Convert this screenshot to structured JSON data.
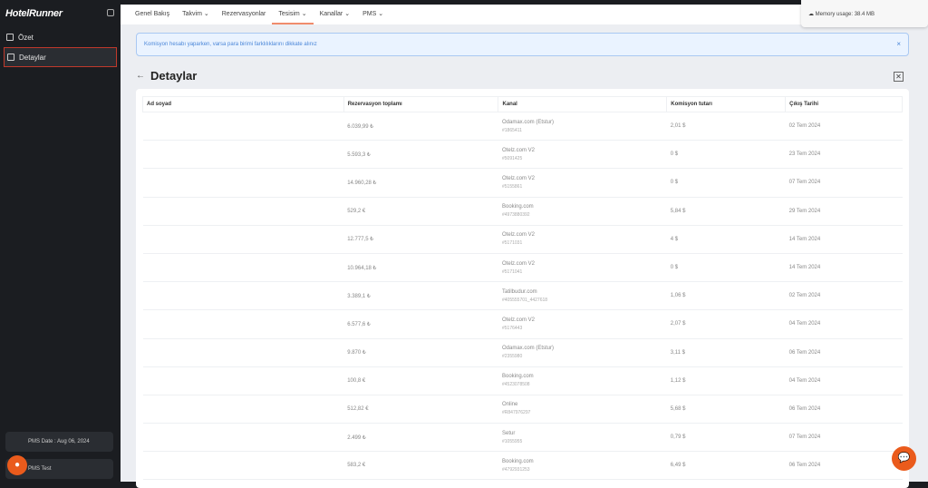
{
  "sidebar": {
    "logo": "HotelRunner",
    "items": [
      {
        "label": "Özet"
      },
      {
        "label": "Detaylar"
      }
    ],
    "pms_date": "PMS Date : Aug 06, 2024",
    "pms_name": "PMS Test"
  },
  "nav": {
    "items": [
      "Genel Bakış",
      "Takvim",
      "Rezervasyonlar",
      "Tesisim",
      "Kanallar",
      "PMS"
    ],
    "active": "Tesisim"
  },
  "alert": {
    "text": "Komisyon hesabı yaparken, varsa para birimi farklılıklarını dikkate alınız",
    "close": "×"
  },
  "page": {
    "title": "Detaylar"
  },
  "popup": {
    "memory": "Memory usage: 38.4 MB"
  },
  "table": {
    "headers": [
      "Ad soyad",
      "Rezervasyon toplamı",
      "Kanal",
      "Komisyon tutarı",
      "Çıkış Tarihi"
    ],
    "rows": [
      [
        "",
        "6.039,99 ₺",
        "Odamax.com (Etstur)",
        "#1865411",
        "2,01 $",
        "02 Tem 2024"
      ],
      [
        "",
        "5.593,3 ₺",
        "Otelz.com V2",
        "#5091425",
        "0 $",
        "23 Tem 2024"
      ],
      [
        "",
        "14.960,28 ₺",
        "Otelz.com V2",
        "#5155861",
        "0 $",
        "07 Tem 2024"
      ],
      [
        "",
        "529,2 €",
        "Booking.com",
        "#4973880392",
        "5,84 $",
        "29 Tem 2024"
      ],
      [
        "",
        "12.777,5 ₺",
        "Otelz.com V2",
        "#5171031",
        "4 $",
        "14 Tem 2024"
      ],
      [
        "",
        "10.964,18 ₺",
        "Otelz.com V2",
        "#5171041",
        "0 $",
        "14 Tem 2024"
      ],
      [
        "",
        "3.389,1 ₺",
        "Tatilbudur.com",
        "#405555701_4427618",
        "1,06 $",
        "02 Tem 2024"
      ],
      [
        "",
        "6.577,6 ₺",
        "Otelz.com V2",
        "#5176443",
        "2,07 $",
        "04 Tem 2024"
      ],
      [
        "",
        "9.870 ₺",
        "Odamax.com (Etstur)",
        "#2355980",
        "3,11 $",
        "06 Tem 2024"
      ],
      [
        "",
        "100,8 €",
        "Booking.com",
        "#4523078508",
        "1,12 $",
        "04 Tem 2024"
      ],
      [
        "",
        "512,82 €",
        "Online",
        "#R847976297",
        "5,68 $",
        "06 Tem 2024"
      ],
      [
        "",
        "2.499 ₺",
        "Setur",
        "#1055955",
        "0,79 $",
        "07 Tem 2024"
      ],
      [
        "",
        "583,2 €",
        "Booking.com",
        "#4792931253",
        "6,49 $",
        "06 Tem 2024"
      ]
    ]
  }
}
